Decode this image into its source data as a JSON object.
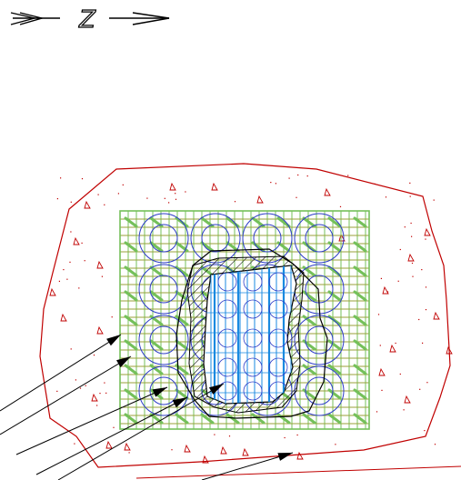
{
  "drawing": {
    "north_arrow": {
      "letter": "Z"
    },
    "pile_grid": {
      "rows": 4,
      "columns": 4
    },
    "leader_count": 6,
    "colors": {
      "boundary": "#c00000",
      "mesh": "#74c05a",
      "mesh_dark": "#9aa23a",
      "piles": "#2d3cc8",
      "core": "#1a8ae0",
      "hatch": "#000000",
      "leaders": "#000000"
    }
  }
}
